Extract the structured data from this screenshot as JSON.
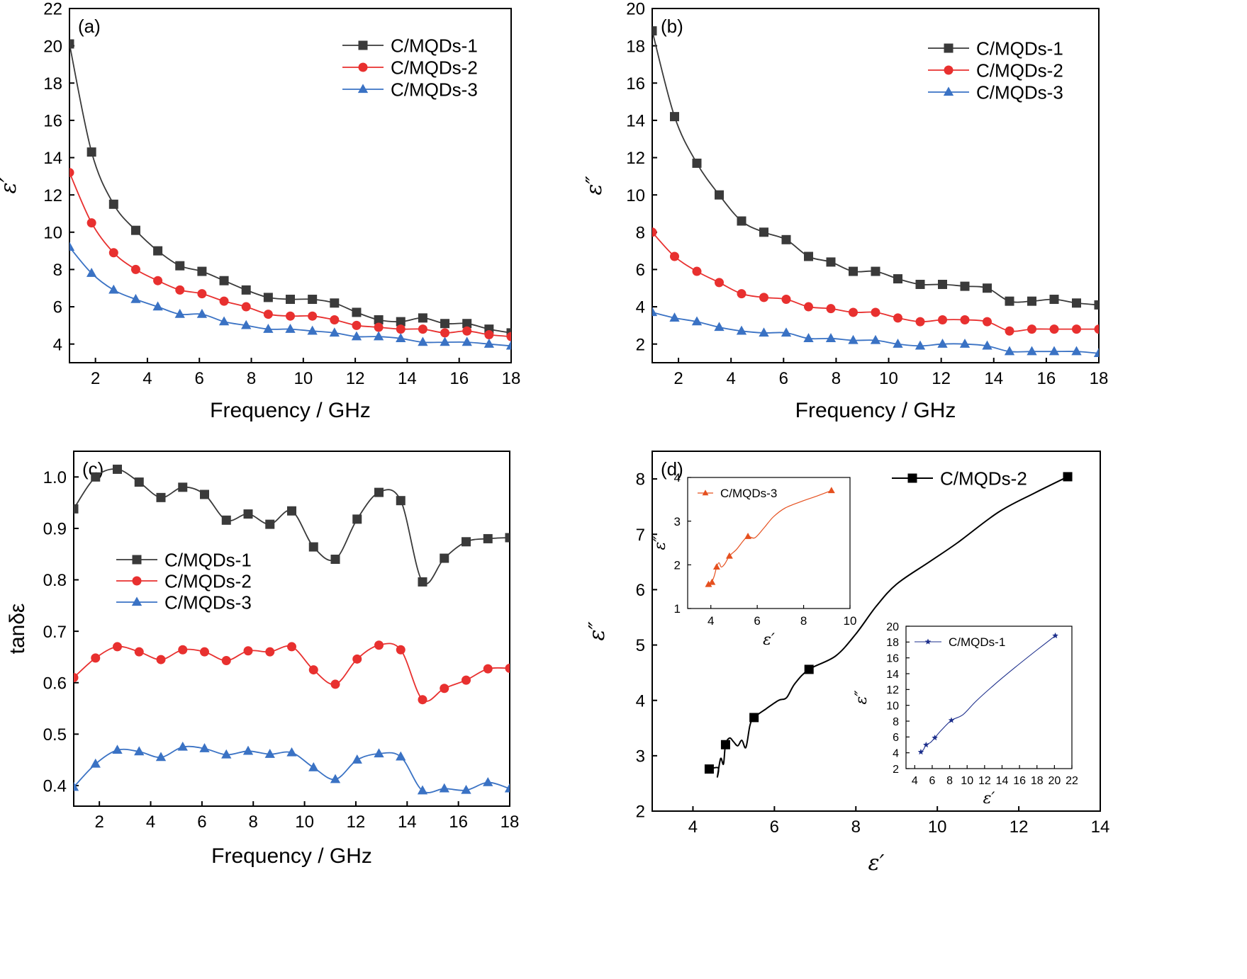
{
  "colors": {
    "C/MQDs-1": "#3a3a3a",
    "C/MQDs-2": "#e8302f",
    "C/MQDs-3": "#3a72c4",
    "inset-MQDs-3": "#e5501f",
    "inset-MQDs-1": "#1d2f8c"
  },
  "chart_data": [
    {
      "id": "a",
      "type": "line",
      "panel_label": "(a)",
      "xlabel": "Frequency / GHz",
      "ylabel": "ε′",
      "xlim": [
        1,
        18
      ],
      "ylim": [
        3,
        22
      ],
      "xticks": [
        2,
        4,
        6,
        8,
        10,
        12,
        14,
        16,
        18
      ],
      "yticks": [
        4,
        6,
        8,
        10,
        12,
        14,
        16,
        18,
        20,
        22
      ],
      "legend_position": "top-right",
      "x": [
        1.0,
        1.85,
        2.7,
        3.55,
        4.4,
        5.25,
        6.1,
        6.95,
        7.8,
        8.65,
        9.5,
        10.35,
        11.2,
        12.05,
        12.9,
        13.75,
        14.6,
        15.45,
        16.3,
        17.15,
        18.0
      ],
      "series": [
        {
          "name": "C/MQDs-1",
          "marker": "square",
          "values": [
            20.1,
            14.3,
            11.5,
            10.1,
            9.0,
            8.2,
            7.9,
            7.4,
            6.9,
            6.5,
            6.4,
            6.4,
            6.2,
            5.7,
            5.3,
            5.2,
            5.4,
            5.1,
            5.1,
            4.8,
            4.6
          ]
        },
        {
          "name": "C/MQDs-2",
          "marker": "circle",
          "values": [
            13.2,
            10.5,
            8.9,
            8.0,
            7.4,
            6.9,
            6.7,
            6.3,
            6.0,
            5.6,
            5.5,
            5.5,
            5.3,
            5.0,
            4.9,
            4.8,
            4.8,
            4.6,
            4.7,
            4.5,
            4.4
          ]
        },
        {
          "name": "C/MQDs-3",
          "marker": "triangle",
          "values": [
            9.2,
            7.8,
            6.9,
            6.4,
            6.0,
            5.6,
            5.6,
            5.2,
            5.0,
            4.8,
            4.8,
            4.7,
            4.6,
            4.4,
            4.4,
            4.3,
            4.1,
            4.1,
            4.1,
            4.0,
            3.9
          ]
        }
      ]
    },
    {
      "id": "b",
      "type": "line",
      "panel_label": "(b)",
      "xlabel": "Frequency / GHz",
      "ylabel": "ε″",
      "xlim": [
        1,
        18
      ],
      "ylim": [
        1,
        20
      ],
      "xticks": [
        2,
        4,
        6,
        8,
        10,
        12,
        14,
        16,
        18
      ],
      "yticks": [
        2,
        4,
        6,
        8,
        10,
        12,
        14,
        16,
        18,
        20
      ],
      "legend_position": "top-right",
      "x": [
        1.0,
        1.85,
        2.7,
        3.55,
        4.4,
        5.25,
        6.1,
        6.95,
        7.8,
        8.65,
        9.5,
        10.35,
        11.2,
        12.05,
        12.9,
        13.75,
        14.6,
        15.45,
        16.3,
        17.15,
        18.0
      ],
      "series": [
        {
          "name": "C/MQDs-1",
          "marker": "square",
          "values": [
            18.8,
            14.2,
            11.7,
            10.0,
            8.6,
            8.0,
            7.6,
            6.7,
            6.4,
            5.9,
            5.9,
            5.5,
            5.2,
            5.2,
            5.1,
            5.0,
            4.3,
            4.3,
            4.4,
            4.2,
            4.1
          ]
        },
        {
          "name": "C/MQDs-2",
          "marker": "circle",
          "values": [
            8.0,
            6.7,
            5.9,
            5.3,
            4.7,
            4.5,
            4.4,
            4.0,
            3.9,
            3.7,
            3.7,
            3.4,
            3.2,
            3.3,
            3.3,
            3.2,
            2.7,
            2.8,
            2.8,
            2.8,
            2.8
          ]
        },
        {
          "name": "C/MQDs-3",
          "marker": "triangle",
          "values": [
            3.7,
            3.4,
            3.2,
            2.9,
            2.7,
            2.6,
            2.6,
            2.3,
            2.3,
            2.2,
            2.2,
            2.0,
            1.9,
            2.0,
            2.0,
            1.9,
            1.6,
            1.6,
            1.6,
            1.6,
            1.5
          ]
        }
      ]
    },
    {
      "id": "c",
      "type": "line",
      "panel_label": "(c)",
      "xlabel": "Frequency / GHz",
      "ylabel": "tanδε",
      "xlim": [
        1,
        18
      ],
      "ylim": [
        0.36,
        1.05
      ],
      "xticks": [
        2,
        4,
        6,
        8,
        10,
        12,
        14,
        16,
        18
      ],
      "yticks": [
        0.4,
        0.5,
        0.6,
        0.7,
        0.8,
        0.9,
        1.0
      ],
      "legend_position": "center-left",
      "x": [
        1.0,
        1.85,
        2.7,
        3.55,
        4.4,
        5.25,
        6.1,
        6.95,
        7.8,
        8.65,
        9.5,
        10.35,
        11.2,
        12.05,
        12.9,
        13.75,
        14.6,
        15.45,
        16.3,
        17.15,
        18.0
      ],
      "series": [
        {
          "name": "C/MQDs-1",
          "marker": "square",
          "values": [
            0.938,
            1.0,
            1.015,
            0.99,
            0.96,
            0.98,
            0.966,
            0.916,
            0.928,
            0.908,
            0.934,
            0.864,
            0.84,
            0.918,
            0.97,
            0.954,
            0.796,
            0.842,
            0.874,
            0.88,
            0.882
          ]
        },
        {
          "name": "C/MQDs-2",
          "marker": "circle",
          "values": [
            0.61,
            0.648,
            0.67,
            0.66,
            0.645,
            0.664,
            0.66,
            0.643,
            0.662,
            0.66,
            0.67,
            0.625,
            0.597,
            0.646,
            0.673,
            0.664,
            0.567,
            0.589,
            0.605,
            0.627,
            0.628
          ]
        },
        {
          "name": "C/MQDs-3",
          "marker": "triangle",
          "values": [
            0.397,
            0.442,
            0.469,
            0.466,
            0.455,
            0.475,
            0.472,
            0.46,
            0.467,
            0.461,
            0.464,
            0.435,
            0.412,
            0.45,
            0.462,
            0.456,
            0.39,
            0.394,
            0.391,
            0.406,
            0.394
          ]
        }
      ]
    },
    {
      "id": "d",
      "type": "line",
      "panel_label": "(d)",
      "xlabel": "ε′",
      "ylabel": "ε″",
      "xlim": [
        3,
        14
      ],
      "ylim": [
        2,
        8.5
      ],
      "xticks": [
        4,
        6,
        8,
        10,
        12,
        14
      ],
      "yticks": [
        2,
        3,
        4,
        5,
        6,
        7,
        8
      ],
      "legend_position": "top-right",
      "series": [
        {
          "name": "C/MQDs-2",
          "marker": "square",
          "markers": [
            [
              4.4,
              2.76
            ],
            [
              4.8,
              3.2
            ],
            [
              5.5,
              3.69
            ],
            [
              6.85,
              4.56
            ],
            [
              13.2,
              8.04
            ]
          ],
          "curve": [
            [
              4.4,
              2.76
            ],
            [
              4.62,
              2.78
            ],
            [
              4.6,
              2.62
            ],
            [
              4.68,
              2.95
            ],
            [
              4.75,
              2.85
            ],
            [
              4.8,
              3.2
            ],
            [
              4.9,
              3.32
            ],
            [
              5.0,
              3.25
            ],
            [
              5.1,
              3.18
            ],
            [
              5.2,
              3.28
            ],
            [
              5.3,
              3.15
            ],
            [
              5.4,
              3.55
            ],
            [
              5.5,
              3.69
            ],
            [
              5.8,
              3.85
            ],
            [
              6.1,
              4.0
            ],
            [
              6.3,
              4.05
            ],
            [
              6.5,
              4.3
            ],
            [
              6.85,
              4.56
            ],
            [
              7.5,
              4.8
            ],
            [
              8.0,
              5.2
            ],
            [
              8.5,
              5.7
            ],
            [
              9.0,
              6.1
            ],
            [
              9.8,
              6.5
            ],
            [
              10.5,
              6.85
            ],
            [
              11.5,
              7.4
            ],
            [
              12.4,
              7.75
            ],
            [
              13.2,
              8.04
            ]
          ]
        }
      ],
      "insets": [
        {
          "id": "d-inset-1",
          "type": "line",
          "xlabel": "ε′",
          "ylabel": "ε″",
          "xlim": [
            3,
            10
          ],
          "ylim": [
            1,
            4
          ],
          "xticks": [
            4,
            6,
            8,
            10
          ],
          "yticks": [
            1,
            2,
            3,
            4
          ],
          "legend_position": "top-left",
          "series": [
            {
              "name": "C/MQDs-3",
              "marker": "triangle",
              "markers": [
                [
                  3.9,
                  1.55
                ],
                [
                  4.05,
                  1.6
                ],
                [
                  4.25,
                  1.95
                ],
                [
                  4.8,
                  2.2
                ],
                [
                  5.6,
                  2.65
                ],
                [
                  9.2,
                  3.7
                ]
              ],
              "curve": [
                [
                  3.9,
                  1.55
                ],
                [
                  4.05,
                  1.62
                ],
                [
                  4.15,
                  1.75
                ],
                [
                  4.25,
                  1.95
                ],
                [
                  4.35,
                  2.05
                ],
                [
                  4.45,
                  1.95
                ],
                [
                  4.6,
                  2.02
                ],
                [
                  4.8,
                  2.2
                ],
                [
                  5.1,
                  2.35
                ],
                [
                  5.4,
                  2.55
                ],
                [
                  5.6,
                  2.65
                ],
                [
                  5.9,
                  2.62
                ],
                [
                  6.3,
                  2.85
                ],
                [
                  6.7,
                  3.1
                ],
                [
                  7.2,
                  3.3
                ],
                [
                  7.9,
                  3.45
                ],
                [
                  8.6,
                  3.58
                ],
                [
                  9.2,
                  3.7
                ]
              ]
            }
          ]
        },
        {
          "id": "d-inset-2",
          "type": "line",
          "xlabel": "ε′",
          "ylabel": "ε″",
          "xlim": [
            3,
            22
          ],
          "ylim": [
            2,
            20
          ],
          "xticks": [
            4,
            6,
            8,
            10,
            12,
            14,
            16,
            18,
            20,
            22
          ],
          "yticks": [
            2,
            4,
            6,
            8,
            10,
            12,
            14,
            16,
            18,
            20
          ],
          "legend_position": "top-right",
          "series": [
            {
              "name": "C/MQDs-1",
              "marker": "star",
              "markers": [
                [
                  4.7,
                  4.1
                ],
                [
                  5.3,
                  5.0
                ],
                [
                  6.3,
                  5.9
                ],
                [
                  8.2,
                  8.1
                ],
                [
                  20.1,
                  18.8
                ]
              ],
              "curve": [
                [
                  4.7,
                  4.1
                ],
                [
                  5.0,
                  4.4
                ],
                [
                  5.3,
                  5.0
                ],
                [
                  5.8,
                  5.3
                ],
                [
                  6.3,
                  5.9
                ],
                [
                  7.0,
                  6.8
                ],
                [
                  8.2,
                  8.1
                ],
                [
                  9.5,
                  8.8
                ],
                [
                  11.0,
                  10.5
                ],
                [
                  13.0,
                  12.5
                ],
                [
                  15.5,
                  14.8
                ],
                [
                  18.0,
                  17.0
                ],
                [
                  20.1,
                  18.8
                ]
              ]
            }
          ]
        }
      ]
    }
  ]
}
